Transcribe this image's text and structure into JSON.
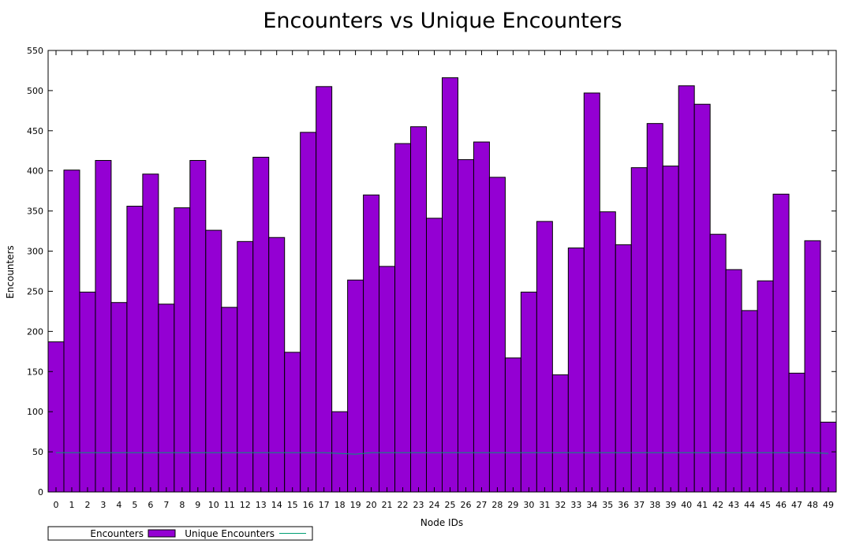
{
  "chart_data": {
    "type": "bar",
    "title": "Encounters vs Unique Encounters",
    "xlabel": "Node IDs",
    "ylabel": "Encounters",
    "ylim": [
      0,
      550
    ],
    "yticks": [
      0,
      50,
      100,
      150,
      200,
      250,
      300,
      350,
      400,
      450,
      500,
      550
    ],
    "categories": [
      "0",
      "1",
      "2",
      "3",
      "4",
      "5",
      "6",
      "7",
      "8",
      "9",
      "10",
      "11",
      "12",
      "13",
      "14",
      "15",
      "16",
      "17",
      "18",
      "19",
      "20",
      "21",
      "22",
      "23",
      "24",
      "25",
      "26",
      "27",
      "28",
      "29",
      "30",
      "31",
      "32",
      "33",
      "34",
      "35",
      "36",
      "37",
      "38",
      "39",
      "40",
      "41",
      "42",
      "43",
      "44",
      "45",
      "46",
      "47",
      "48",
      "49"
    ],
    "series": [
      {
        "name": "Encounters",
        "kind": "bar",
        "color": "#9400d3",
        "values": [
          187,
          401,
          249,
          413,
          236,
          356,
          396,
          234,
          354,
          413,
          326,
          230,
          312,
          417,
          317,
          174,
          448,
          505,
          100,
          264,
          370,
          281,
          434,
          455,
          341,
          516,
          414,
          436,
          392,
          167,
          249,
          337,
          146,
          304,
          497,
          349,
          308,
          404,
          459,
          406,
          506,
          483,
          321,
          277,
          226,
          263,
          371,
          148,
          313,
          87
        ]
      },
      {
        "name": "Unique Encounters",
        "kind": "line",
        "color": "#009e73",
        "values": [
          49,
          49,
          49,
          49,
          49,
          49,
          49,
          49,
          49,
          49,
          49,
          49,
          49,
          49,
          49,
          49,
          49,
          49,
          48,
          47,
          49,
          49,
          49,
          49,
          49,
          49,
          49,
          49,
          49,
          49,
          49,
          49,
          49,
          49,
          49,
          49,
          49,
          49,
          49,
          49,
          49,
          49,
          49,
          49,
          49,
          49,
          49,
          49,
          49,
          48
        ]
      }
    ],
    "grid": false,
    "legend_position": "bottom-left"
  }
}
